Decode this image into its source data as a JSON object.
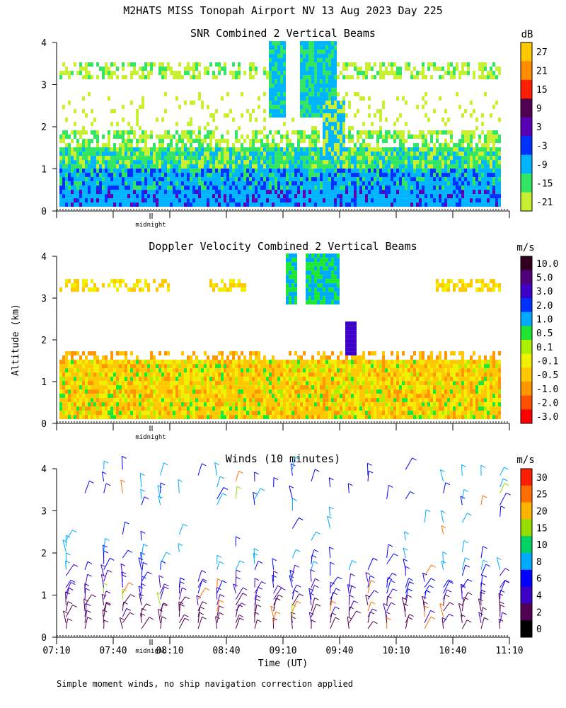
{
  "figure": {
    "title": "M2HATS MISS Tonopah Airport NV  13 Aug 2023 Day 225",
    "ylabel": "Altitude (km)",
    "xlabel": "Time (UT)",
    "footnote": "Simple moment winds, no ship navigation correction applied",
    "midnight_label": "midnight"
  },
  "chart_data": [
    {
      "type": "heatmap",
      "title": "SNR Combined 2 Vertical Beams",
      "unit": "dB",
      "yticks": [
        "0",
        "1",
        "2",
        "3",
        "4"
      ],
      "ylim": [
        0,
        4
      ],
      "xlim": [
        "07:10",
        "11:10"
      ],
      "colorbar": {
        "labels": [
          "27",
          "21",
          "15",
          "9",
          "3",
          "-3",
          "-9",
          "-15",
          "-21"
        ],
        "colors": [
          "#ffc800",
          "#ff8c00",
          "#ff1e00",
          "#500050",
          "#5a00b4",
          "#0032ff",
          "#00b4ff",
          "#32e664",
          "#c8f032"
        ]
      }
    },
    {
      "type": "heatmap",
      "title": "Doppler Velocity Combined 2 Vertical Beams",
      "unit": "m/s",
      "yticks": [
        "0",
        "1",
        "2",
        "3",
        "4"
      ],
      "ylim": [
        0,
        4
      ],
      "xlim": [
        "07:10",
        "11:10"
      ],
      "colorbar": {
        "labels": [
          "10.0",
          "5.0",
          "3.0",
          "2.0",
          "1.0",
          "0.5",
          "0.1",
          "-0.1",
          "-0.5",
          "-1.0",
          "-2.0",
          "-3.0"
        ],
        "colors": [
          "#32001e",
          "#50007a",
          "#3c00c8",
          "#0032ff",
          "#00aaff",
          "#1ee632",
          "#aaf000",
          "#f0f000",
          "#ffc800",
          "#ff9600",
          "#ff5000",
          "#ff0000"
        ]
      }
    },
    {
      "type": "scatter",
      "title": "Winds (10 minutes)",
      "unit": "m/s",
      "yticks": [
        "0",
        "1",
        "2",
        "3",
        "4"
      ],
      "ylim": [
        0,
        4
      ],
      "xticks": [
        "07:10",
        "07:40",
        "08:10",
        "08:40",
        "09:10",
        "09:40",
        "10:10",
        "10:40",
        "11:10"
      ],
      "colorbar": {
        "labels": [
          "30",
          "25",
          "20",
          "15",
          "10",
          "8",
          "6",
          "4",
          "2",
          "0"
        ],
        "colors": [
          "#ff1e00",
          "#ff6e00",
          "#ffb400",
          "#96dc00",
          "#00d264",
          "#00aaff",
          "#0000ff",
          "#3c00c8",
          "#500050",
          "#000000"
        ]
      }
    }
  ]
}
